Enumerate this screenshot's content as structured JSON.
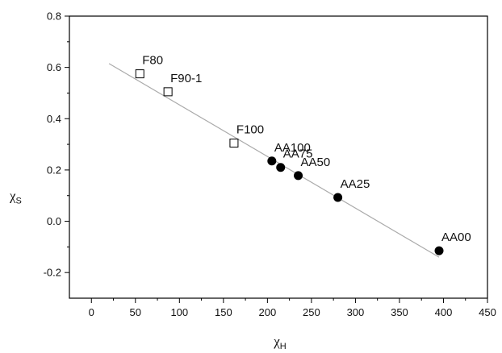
{
  "chart_data": {
    "type": "scatter",
    "xlabel": {
      "main": "χ",
      "sub": "H"
    },
    "ylabel": {
      "main": "χ",
      "sub": "S"
    },
    "xlim": [
      -25,
      450
    ],
    "ylim": [
      -0.3,
      0.8
    ],
    "x_ticks": [
      0,
      50,
      100,
      150,
      200,
      250,
      300,
      350,
      400,
      450
    ],
    "y_ticks": [
      -0.2,
      0.0,
      0.2,
      0.4,
      0.6,
      0.8
    ],
    "x_tick_labels": [
      "0",
      "50",
      "100",
      "150",
      "200",
      "250",
      "300",
      "350",
      "400",
      "450"
    ],
    "y_tick_labels": [
      "-0.2",
      "0.0",
      "0.2",
      "0.4",
      "0.6",
      "0.8"
    ],
    "grid": false,
    "series": [
      {
        "marker": "open-square",
        "points": [
          {
            "label": "F80",
            "x": 55,
            "y": 0.575
          },
          {
            "label": "F90-1",
            "x": 87,
            "y": 0.505
          },
          {
            "label": "F100",
            "x": 162,
            "y": 0.305
          }
        ]
      },
      {
        "marker": "filled-circle",
        "points": [
          {
            "label": "AA100",
            "x": 205,
            "y": 0.235
          },
          {
            "label": "AA75",
            "x": 215,
            "y": 0.21
          },
          {
            "label": "AA50",
            "x": 235,
            "y": 0.178
          },
          {
            "label": "AA25",
            "x": 280,
            "y": 0.093
          },
          {
            "label": "AA00",
            "x": 395,
            "y": -0.115
          }
        ]
      }
    ],
    "fit_line": {
      "x": [
        20,
        395
      ],
      "y": [
        0.615,
        -0.14
      ]
    },
    "colors": {
      "marker": "#000000",
      "fit_line": "#aaaaaa",
      "axes": "#000000"
    }
  }
}
